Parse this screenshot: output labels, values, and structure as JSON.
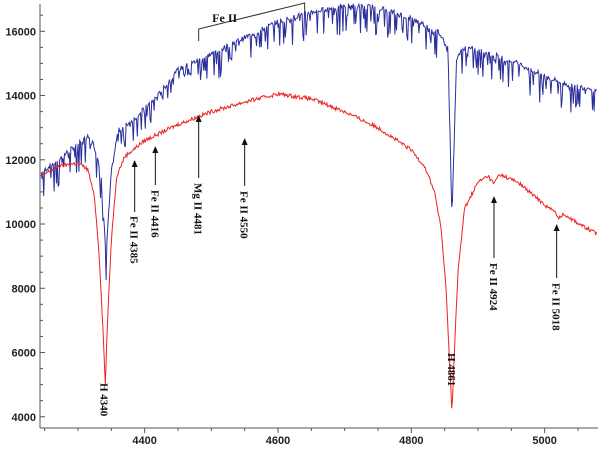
{
  "chart_data": {
    "type": "line",
    "title": "",
    "xlabel": "",
    "ylabel": "",
    "xlim": [
      4243,
      5080
    ],
    "ylim": [
      3650,
      16850
    ],
    "x_ticks": [
      4400,
      4600,
      4800,
      5000
    ],
    "y_ticks": [
      4000,
      6000,
      8000,
      10000,
      12000,
      14000,
      16000
    ],
    "grid": false,
    "legend": "none",
    "series": [
      {
        "color": "#2b2f9c",
        "x": [
          4245,
          4270,
          4300,
          4320,
          4335,
          4342,
          4350,
          4360,
          4380,
          4400,
          4420,
          4450,
          4480,
          4500,
          4540,
          4560,
          4600,
          4650,
          4700,
          4750,
          4800,
          4840,
          4855,
          4861,
          4868,
          4880,
          4920,
          4960,
          5000,
          5040,
          5078
        ],
        "y": [
          11600,
          12000,
          12500,
          12800,
          11500,
          9000,
          11600,
          12900,
          13200,
          13600,
          14000,
          14800,
          15100,
          15300,
          15700,
          15900,
          16300,
          16600,
          16800,
          16750,
          16400,
          16000,
          15500,
          10200,
          15200,
          15500,
          15300,
          15000,
          14600,
          14300,
          14200
        ]
      },
      {
        "color": "#ee2222",
        "x": [
          4245,
          4270,
          4300,
          4315,
          4325,
          4332,
          4338,
          4341,
          4344,
          4350,
          4358,
          4370,
          4400,
          4450,
          4500,
          4550,
          4600,
          4650,
          4700,
          4750,
          4800,
          4820,
          4835,
          4845,
          4852,
          4858,
          4861,
          4864,
          4870,
          4880,
          4900,
          4915,
          4924,
          4932,
          4960,
          5000,
          5017,
          5019,
          5030,
          5060,
          5078
        ],
        "y": [
          11500,
          11800,
          11900,
          11700,
          10800,
          9000,
          6500,
          5000,
          6800,
          9500,
          11500,
          12100,
          12600,
          13100,
          13500,
          13800,
          14050,
          13900,
          13500,
          13000,
          12300,
          11800,
          11000,
          9800,
          8000,
          5500,
          4050,
          5800,
          8500,
          10500,
          11300,
          11500,
          11250,
          11550,
          11300,
          10600,
          10350,
          10200,
          10300,
          9900,
          9700
        ]
      }
    ],
    "annotations": [
      {
        "label": "H 4340",
        "x": 4340
      },
      {
        "label": "Fe II 4385",
        "x": 4385
      },
      {
        "label": "Fe II 4416",
        "x": 4416
      },
      {
        "label": "Mg II 4481",
        "x": 4481
      },
      {
        "label": "Fe II 4550",
        "x": 4550
      },
      {
        "label": "H 4861",
        "x": 4861
      },
      {
        "label": "Fe II 4924",
        "x": 4924
      },
      {
        "label": "Fe II 5018",
        "x": 5018
      }
    ],
    "bracket_label": "Fe II"
  }
}
